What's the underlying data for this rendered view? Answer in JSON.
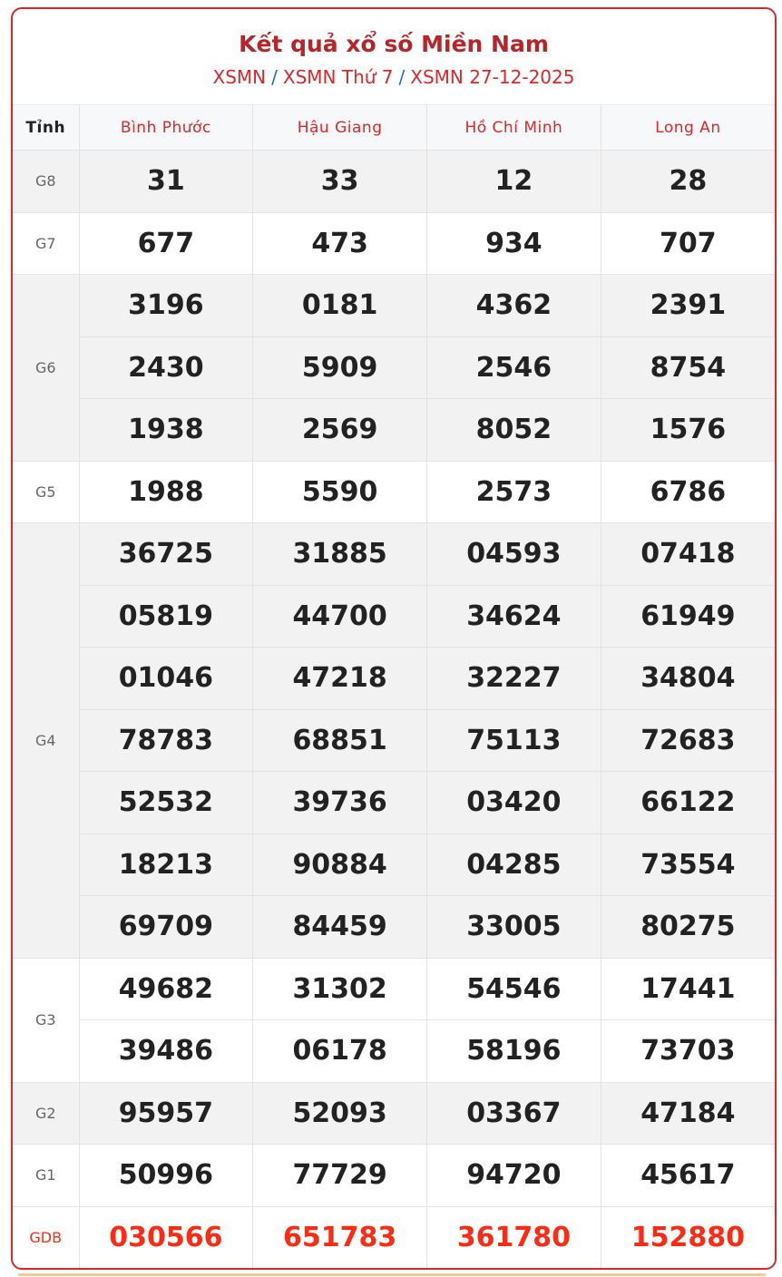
{
  "header": {
    "title": "Kết quả xổ số Miền Nam",
    "breadcrumb": [
      "XSMN",
      "XSMN Thứ 7",
      "XSMN 27-12-2025"
    ],
    "separator": "/"
  },
  "table": {
    "first_column_header": "Tỉnh",
    "provinces": [
      "Bình Phước",
      "Hậu Giang",
      "Hồ Chí Minh",
      "Long An"
    ],
    "prizes": [
      {
        "label": "G8",
        "shade": "gray",
        "rows": [
          [
            "31",
            "33",
            "12",
            "28"
          ]
        ]
      },
      {
        "label": "G7",
        "shade": "white",
        "rows": [
          [
            "677",
            "473",
            "934",
            "707"
          ]
        ]
      },
      {
        "label": "G6",
        "shade": "gray",
        "rows": [
          [
            "3196",
            "0181",
            "4362",
            "2391"
          ],
          [
            "2430",
            "5909",
            "2546",
            "8754"
          ],
          [
            "1938",
            "2569",
            "8052",
            "1576"
          ]
        ]
      },
      {
        "label": "G5",
        "shade": "white",
        "rows": [
          [
            "1988",
            "5590",
            "2573",
            "6786"
          ]
        ]
      },
      {
        "label": "G4",
        "shade": "gray",
        "rows": [
          [
            "36725",
            "31885",
            "04593",
            "07418"
          ],
          [
            "05819",
            "44700",
            "34624",
            "61949"
          ],
          [
            "01046",
            "47218",
            "32227",
            "34804"
          ],
          [
            "78783",
            "68851",
            "75113",
            "72683"
          ],
          [
            "52532",
            "39736",
            "03420",
            "66122"
          ],
          [
            "18213",
            "90884",
            "04285",
            "73554"
          ],
          [
            "69709",
            "84459",
            "33005",
            "80275"
          ]
        ]
      },
      {
        "label": "G3",
        "shade": "white",
        "rows": [
          [
            "49682",
            "31302",
            "54546",
            "17441"
          ],
          [
            "39486",
            "06178",
            "58196",
            "73703"
          ]
        ]
      },
      {
        "label": "G2",
        "shade": "gray",
        "rows": [
          [
            "95957",
            "52093",
            "03367",
            "47184"
          ]
        ]
      },
      {
        "label": "G1",
        "shade": "white",
        "rows": [
          [
            "50996",
            "77729",
            "94720",
            "45617"
          ]
        ]
      },
      {
        "label": "GDB",
        "shade": "white",
        "special": true,
        "rows": [
          [
            "030566",
            "651783",
            "361780",
            "152880"
          ]
        ]
      }
    ]
  },
  "colors": {
    "brand_red": "#e0262b",
    "title_red": "#b8242a",
    "special_red": "#ff2a14",
    "separator_blue": "#1d6fb8"
  }
}
